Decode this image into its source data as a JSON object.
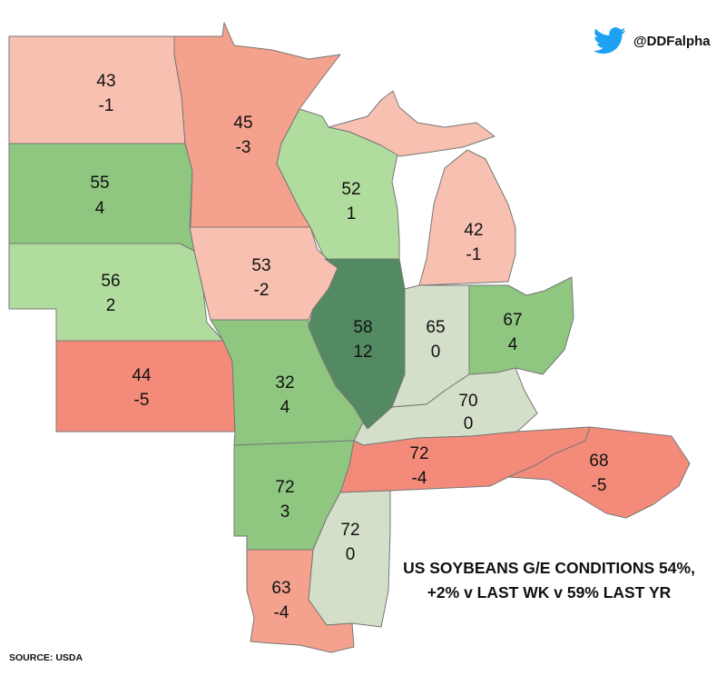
{
  "header": {
    "twitter_handle": "@DDFalpha",
    "twitter_icon": "twitter-bird-icon",
    "twitter_color": "#1DA1F2"
  },
  "headline": {
    "line1": "US SOYBEANS G/E CONDITIONS 54%,",
    "line2": "+2% v LAST WK v 59% LAST YR"
  },
  "source": "SOURCE: USDA",
  "colors": {
    "dark_green": "#548a62",
    "green": "#8fc781",
    "light_green": "#b0dc9e",
    "neutral": "#d4dfc9",
    "light_pink": "#f7c0b1",
    "salmon": "#f4a28e",
    "red": "#f48b7a"
  },
  "states": {
    "nd": {
      "good_excellent": "43",
      "weekly_change": "-1"
    },
    "mn": {
      "good_excellent": "45",
      "weekly_change": "-3"
    },
    "sd": {
      "good_excellent": "55",
      "weekly_change": "4"
    },
    "wi": {
      "good_excellent": "52",
      "weekly_change": "1"
    },
    "mi": {
      "good_excellent": "42",
      "weekly_change": "-1"
    },
    "ne": {
      "good_excellent": "56",
      "weekly_change": "2"
    },
    "ia": {
      "good_excellent": "53",
      "weekly_change": "-2"
    },
    "il": {
      "good_excellent": "58",
      "weekly_change": "12"
    },
    "in": {
      "good_excellent": "65",
      "weekly_change": "0"
    },
    "oh": {
      "good_excellent": "67",
      "weekly_change": "4"
    },
    "ks": {
      "good_excellent": "44",
      "weekly_change": "-5"
    },
    "mo": {
      "good_excellent": "32",
      "weekly_change": "4"
    },
    "ky": {
      "good_excellent": "70",
      "weekly_change": "0"
    },
    "tn": {
      "good_excellent": "72",
      "weekly_change": "-4"
    },
    "nc": {
      "good_excellent": "68",
      "weekly_change": "-5"
    },
    "ar": {
      "good_excellent": "72",
      "weekly_change": "3"
    },
    "ms": {
      "good_excellent": "72",
      "weekly_change": "0"
    },
    "la": {
      "good_excellent": "63",
      "weekly_change": "-4"
    }
  }
}
